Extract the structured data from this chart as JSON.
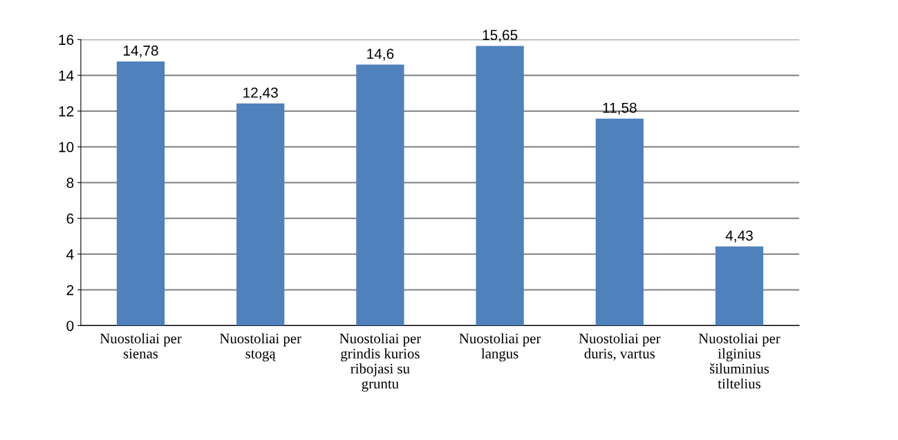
{
  "chart_data": {
    "type": "bar",
    "categories": [
      "Nuostoliai per sienas",
      "Nuostoliai per stogą",
      "Nuostoliai per grindis kurios ribojasi su gruntu",
      "Nuostoliai per langus",
      "Nuostoliai per duris, vartus",
      "Nuostoliai per ilginius šiluminius tiltelius"
    ],
    "values": [
      14.78,
      12.43,
      14.6,
      15.65,
      11.58,
      4.43
    ],
    "value_labels": [
      "14,78",
      "12,43",
      "14,6",
      "15,65",
      "11,58",
      "4,43"
    ],
    "color": "#4f81bd",
    "ylim": [
      0,
      16
    ],
    "yticks": [
      0,
      2,
      4,
      6,
      8,
      10,
      12,
      14,
      16
    ],
    "grid": "y"
  }
}
